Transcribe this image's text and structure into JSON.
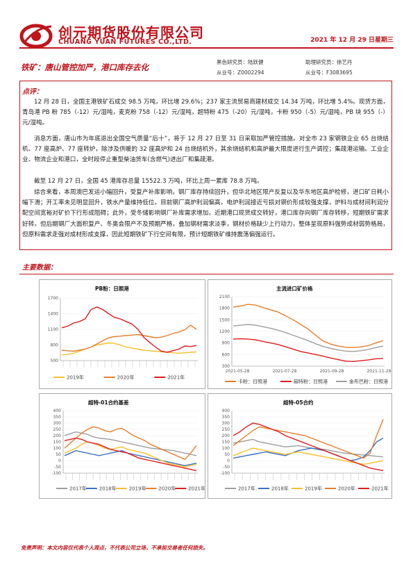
{
  "header": {
    "company_cn": "创元期货股份有限公司",
    "company_en": "CHUANG YUAN FUTURES CO.,LTD.",
    "date": "2021 年 12 月 29 日星期三"
  },
  "report": {
    "title": "铁矿：唐山管控加严，港口库存去化",
    "analyst_label": "黑色研究员：陆跃健",
    "analyst_cert": "从业号：Z0002294",
    "assistant_label": "助理研究员：徐艺丹",
    "assistant_cert": "从业号：F3083695"
  },
  "comment": {
    "label": "点评：",
    "p1": "12 月 28 日，全国主港铁矿石成交 98.5 万吨，环比增 29.6%；237 家主流贸易商建材成交 14.34 万吨，环比增 5.4%。现货方面，青岛港 PB 粉 785（-12）元/湿吨，麦克粉 758（-12）元/湿吨，超特粉 475（-20）元/湿吨，卡粉 950（-5）元/湿吨，PB 块 955（-）元/湿吨。",
    "p2": "消息方面，唐山市为年底退出全国空气质量“后十”，将于 12 月 27 日至 31 日采取加严管控措施。对全市 23 家钢铁企业 65 台烧结机、77 座高炉、77 座转炉，除涉及供暖的 32 座高炉和 24 台烧结机外，其余烧结机和高炉最大限度进行生产调控；集疏港运输。工业企业、物流企业和港口，全时段停止重型柴油货车(含燃气)进出厂和集疏港。",
    "p3": "截至 12 月 27 日，全国 45 港库存总量 15522.3 万吨，环比上周一累库 78.8 万吨。",
    "p4": "综合来看，本周澳巴发运小幅回升，受复产补库影响，钢厂库存持续回升，但华北地区限产反复以及华东地区高炉检修，进口矿日耗小幅下滑；开工率未见明显回升，铁水产量维持低位。目前钢厂高炉利润偏高，电炉利润接近亏损对钢价形成较强支撑，炉料与成材间利润分配空间宽裕对矿价下行形成阻碍；此外，受冬储影响钢厂补库需求增加，近期港口现货成交转好，港口库存向钢厂库存转移，短期铁矿需求好转。但后期钢厂大面积复产、冬奥会限产不及预期严格，叠加钢材需求淡季，钢材价格缺少上行动力，整体呈现原料强势成材弱势格局，但原料需求走强对成材形成支撑，因此短期铁矿下行空间有限，预计短期铁矿维持震荡偏强运行。"
  },
  "main_data_label": "主要数据：",
  "disclaimer": "免责声明：本文内容仅代表个人观点，不代表公司立场，不承担交易者任何损失。",
  "charts": {
    "c1_title": "PB粉：日照港",
    "c2_title": "主流进口矿价格",
    "c3_title": "超特-01合约基差",
    "c4_title": "超特-05合约"
  },
  "chart_data": [
    {
      "type": "line",
      "title": "PB粉：日照港",
      "ylim": [
        500,
        1700
      ],
      "yticks": [
        "1700",
        "1400",
        "1100",
        "800",
        "500"
      ],
      "series": [
        {
          "name": "2019年",
          "color": "#f7c02a",
          "values": [
            610,
            620,
            640,
            680,
            720,
            760,
            800,
            820,
            840,
            830,
            800,
            760,
            740,
            720,
            700,
            690,
            680,
            670,
            660,
            650,
            640,
            650,
            660,
            665
          ]
        },
        {
          "name": "2020年",
          "color": "#e87d2c",
          "values": [
            700,
            690,
            680,
            700,
            720,
            760,
            820,
            880,
            940,
            960,
            970,
            980,
            990,
            1000,
            980,
            960,
            940,
            950,
            980,
            1020,
            1050,
            1090,
            1180,
            1100
          ]
        },
        {
          "name": "2021年",
          "color": "#e31a1c",
          "values": [
            1130,
            1160,
            1220,
            1250,
            1300,
            1480,
            1530,
            1480,
            1400,
            1330,
            1300,
            1250,
            1200,
            1100,
            950,
            850,
            760,
            680,
            660,
            690,
            720,
            780,
            770,
            790
          ]
        }
      ],
      "legend_position": "bottom"
    },
    {
      "type": "line",
      "title": "主流进口矿价格",
      "ylim": [
        300,
        2100
      ],
      "yticks": [
        "2100",
        "1800",
        "1500",
        "1200",
        "900",
        "600",
        "300"
      ],
      "x_labels": [
        "2021-05-28",
        "2021-07-28",
        "2021-09-28",
        "2021-11-28"
      ],
      "series": [
        {
          "name": "卡粉：日照港",
          "color": "#e87d2c",
          "values": [
            1830,
            1860,
            1900,
            1880,
            1820,
            1760,
            1700,
            1600,
            1500,
            1380,
            1260,
            1100,
            950,
            870,
            820,
            790,
            780,
            800,
            830,
            900,
            960
          ]
        },
        {
          "name": "超特粉：日照港",
          "color": "#e31a1c",
          "values": [
            1000,
            1010,
            1000,
            980,
            940,
            900,
            860,
            800,
            740,
            680,
            640,
            600,
            560,
            510,
            470,
            430,
            420,
            440,
            460,
            490,
            500
          ]
        },
        {
          "name": "金布巴粉：日照港",
          "color": "#9e9e9e",
          "values": [
            1340,
            1360,
            1380,
            1360,
            1320,
            1280,
            1230,
            1170,
            1100,
            1030,
            960,
            880,
            810,
            760,
            720,
            690,
            680,
            700,
            730,
            780,
            820
          ]
        }
      ],
      "legend_position": "bottom"
    },
    {
      "type": "line",
      "title": "超特-01合约基差",
      "ylim": [
        -100,
        400
      ],
      "yticks": [
        "400",
        "350",
        "300",
        "250",
        "200",
        "150",
        "100",
        "50",
        "0",
        "-50",
        "-100"
      ],
      "series": [
        {
          "name": "2017年",
          "color": "#9e9e9e",
          "values": [
            200,
            215,
            230,
            220,
            210,
            190,
            180,
            175,
            170,
            160,
            150,
            140,
            130,
            120,
            110,
            100,
            95,
            90,
            85,
            80,
            70,
            60,
            50,
            40
          ]
        },
        {
          "name": "2018年",
          "color": "#3a6fc4",
          "values": [
            40,
            60,
            80,
            70,
            60,
            50,
            40,
            50,
            60,
            70,
            80,
            60,
            50,
            40,
            30,
            20,
            10,
            0,
            -10,
            -20,
            -30,
            -40,
            -30,
            -20
          ]
        },
        {
          "name": "2019年",
          "color": "#f7c02a",
          "values": [
            60,
            80,
            100,
            130,
            150,
            140,
            120,
            100,
            90,
            100,
            110,
            90,
            80,
            70,
            60,
            40,
            20,
            0,
            -20,
            -30,
            -40,
            -50,
            -40,
            -30
          ]
        },
        {
          "name": "2020年",
          "color": "#e87d2c",
          "values": [
            100,
            140,
            180,
            220,
            250,
            270,
            260,
            240,
            230,
            250,
            260,
            230,
            200,
            180,
            160,
            130,
            110,
            90,
            70,
            50,
            30,
            10,
            60,
            120
          ]
        },
        {
          "name": "2021年",
          "color": "#e31a1c",
          "values": [
            160,
            170,
            180,
            170,
            150,
            140,
            130,
            110,
            90,
            80,
            70,
            60,
            40,
            20,
            10,
            0,
            -10,
            -20,
            -30,
            -40,
            -50,
            -60,
            -70,
            -80
          ]
        }
      ],
      "legend_position": "bottom"
    },
    {
      "type": "line",
      "title": "超特-05合约",
      "ylim": [
        -100,
        400
      ],
      "yticks": [
        "400",
        "350",
        "300",
        "250",
        "200",
        "150",
        "100",
        "50",
        "0",
        "-50",
        "-100"
      ],
      "series": [
        {
          "name": "2017年",
          "color": "#9e9e9e",
          "values": [
            140,
            150,
            160,
            170,
            150,
            140,
            130,
            120,
            110,
            115,
            120,
            110,
            100,
            95,
            90,
            80,
            70,
            60,
            55,
            50,
            45,
            40,
            35,
            30
          ]
        },
        {
          "name": "2018年",
          "color": "#3a6fc4",
          "values": [
            20,
            30,
            40,
            50,
            60,
            70,
            60,
            50,
            40,
            60,
            80,
            90,
            100,
            90,
            80,
            60,
            40,
            20,
            0,
            10,
            30,
            80,
            150,
            180
          ]
        },
        {
          "name": "2019年",
          "color": "#f7c02a",
          "values": [
            40,
            60,
            80,
            100,
            90,
            80,
            70,
            60,
            50,
            60,
            70,
            60,
            50,
            40,
            30,
            20,
            10,
            0,
            -10,
            -20,
            -30,
            -20,
            -10,
            0
          ]
        },
        {
          "name": "2020年",
          "color": "#e87d2c",
          "values": [
            120,
            160,
            200,
            240,
            270,
            260,
            250,
            240,
            230,
            220,
            210,
            200,
            180,
            160,
            140,
            120,
            100,
            80,
            60,
            40,
            20,
            60,
            200,
            330
          ]
        },
        {
          "name": "2021年",
          "color": "#e31a1c",
          "values": [
            200,
            230,
            270,
            300,
            290,
            270,
            250,
            230,
            200,
            180,
            160,
            140,
            120,
            100,
            80,
            60,
            40,
            20,
            0,
            -20,
            -40,
            -60,
            -70,
            -80
          ]
        }
      ],
      "legend_position": "bottom"
    }
  ]
}
